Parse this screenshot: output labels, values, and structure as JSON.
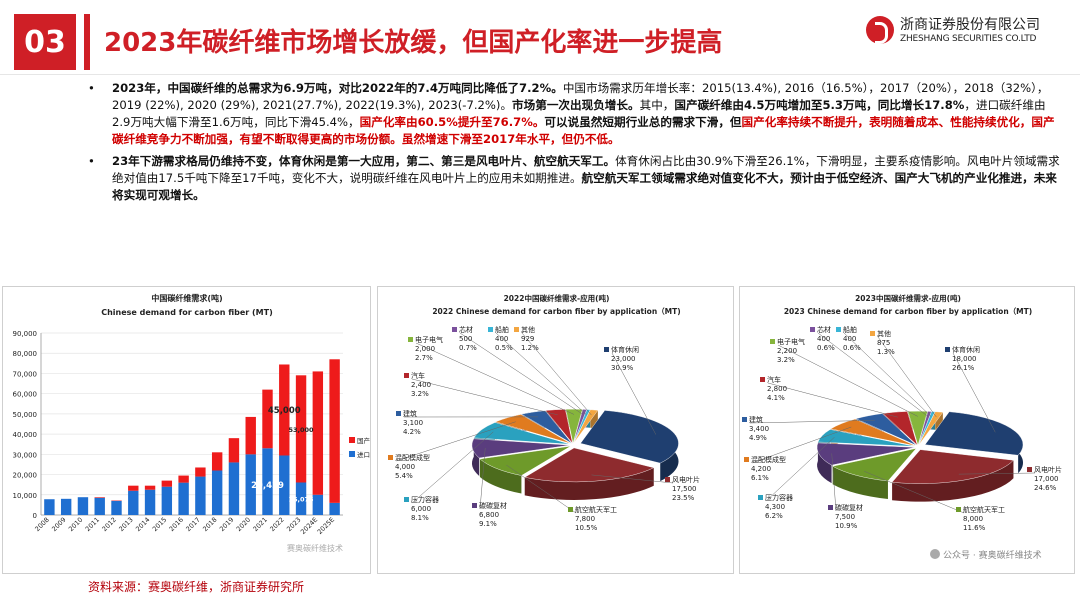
{
  "header": {
    "section_number": "03",
    "title": "2023年碳纤维市场增长放缓，但国产化率进一步提高"
  },
  "logo": {
    "cn": "浙商证券股份有限公司",
    "en": "ZHESHANG SECURITIES CO.LTD"
  },
  "bullets": [
    {
      "dot": "•",
      "segments": [
        {
          "t": "2023年，中国碳纤维的总需求为6.9万吨，对比2022年的7.4万吨同比降低了7.2%。",
          "s": "b"
        },
        {
          "t": "中国市场需求历年增长率：2015(13.4%), 2016（16.5%），2017（20%），2018（32%），2019 (22%), 2020 (29%), 2021(27.7%), 2022(19.3%), 2023(-7.2%)。",
          "s": ""
        },
        {
          "t": "市场第一次出现负增长。",
          "s": "b"
        },
        {
          "t": "其中，",
          "s": ""
        },
        {
          "t": "国产碳纤维由4.5万吨增加至5.3万吨，同比增长17.8%",
          "s": "b"
        },
        {
          "t": "，进口碳纤维由2.9万吨大幅下滑至1.6万吨，同比下滑45.4%，",
          "s": ""
        },
        {
          "t": "国产化率由60.5%提升至76.7%。",
          "s": "r"
        },
        {
          "t": "可以说虽然短期行业总的需求下滑，但",
          "s": "b"
        },
        {
          "t": "国产化率持续不断提升，表明随着成本、性能持续优化，国产碳纤维竞争力不断加强，有望不断取得更高的市场份额。虽然增速下滑至2017年水平，但仍不低。",
          "s": "r"
        }
      ]
    },
    {
      "dot": "•",
      "segments": [
        {
          "t": "23年下游需求格局仍维持不变，体育休闲是第一大应用，第二、第三是风电叶片、航空航天军工。",
          "s": "b"
        },
        {
          "t": "体育休闲占比由30.9%下滑至26.1%，下滑明显，主要系疫情影响。风电叶片领域需求绝对值由17.5千吨下降至17千吨，变化不大，说明碳纤维在风电叶片上的应用未如期推进。",
          "s": ""
        },
        {
          "t": "航空航天军工领域需求绝对值变化不大，预计由于低空经济、国产大飞机的产业化推进，未来将实现可观增长。",
          "s": "b"
        }
      ]
    }
  ],
  "bar_chart": {
    "type": "bar",
    "title_cn": "中国碳纤维需求(吨)",
    "title_en": "Chinese demand for carbon fiber (MT)",
    "categories": [
      "2008",
      "2009",
      "2010",
      "2011",
      "2012",
      "2013",
      "2014",
      "2015",
      "2016",
      "2017",
      "2018",
      "2019",
      "2020",
      "2021",
      "2022",
      "2023",
      "2024E",
      "2025E"
    ],
    "series": [
      {
        "name": "进口",
        "color": "#1f6fd1",
        "values": [
          7800,
          8000,
          8800,
          8500,
          7000,
          12000,
          12500,
          14000,
          16000,
          19000,
          22000,
          26000,
          30000,
          33000,
          29429,
          16075,
          10000,
          6000
        ]
      },
      {
        "name": "国产",
        "color": "#ee1b1b",
        "values": [
          0,
          0,
          0,
          300,
          200,
          2500,
          2000,
          3000,
          3500,
          4500,
          9000,
          12000,
          18500,
          29000,
          45000,
          53000,
          61000,
          71000
        ]
      }
    ],
    "ylim": [
      0,
      90000
    ],
    "yticks": [
      "0",
      "10,000",
      "20,000",
      "30,000",
      "40,000",
      "50,000",
      "60,000",
      "70,000",
      "80,000",
      "90,000"
    ],
    "legend": [
      "国产",
      "进口"
    ],
    "annotations": [
      "45,000",
      "29,429",
      "53,000",
      "16,075"
    ],
    "watermark": "赛奥碳纤维技术"
  },
  "pie_2022": {
    "type": "pie",
    "title_cn": "2022中国碳纤维需求-应用(吨)",
    "title_en": "2022 Chinese demand for carbon fiber by application（MT)",
    "slices": [
      {
        "name": "体育休闲",
        "value": "23,000",
        "pct": "30.9%",
        "v": 23000,
        "color": "#1f3f70"
      },
      {
        "name": "风电叶片",
        "value": "17,500",
        "pct": "23.5%",
        "v": 17500,
        "color": "#8e2b2e"
      },
      {
        "name": "航空航天军工",
        "value": "7,800",
        "pct": "10.5%",
        "v": 7800,
        "color": "#6e9a2a"
      },
      {
        "name": "碳碳复材",
        "value": "6,800",
        "pct": "9.1%",
        "v": 6800,
        "color": "#5a3d7e"
      },
      {
        "name": "压力容器",
        "value": "6,000",
        "pct": "8.1%",
        "v": 6000,
        "color": "#2aa1bf"
      },
      {
        "name": "混配模成型",
        "value": "4,000",
        "pct": "5.4%",
        "v": 4000,
        "color": "#e07b1f"
      },
      {
        "name": "建筑",
        "value": "3,100",
        "pct": "4.2%",
        "v": 3100,
        "color": "#2d5d9f"
      },
      {
        "name": "汽车",
        "value": "2,400",
        "pct": "3.2%",
        "v": 2400,
        "color": "#b3262b"
      },
      {
        "name": "电子电气",
        "value": "2,000",
        "pct": "2.7%",
        "v": 2000,
        "color": "#86b53c"
      },
      {
        "name": "芯材",
        "value": "500",
        "pct": "0.7%",
        "v": 500,
        "color": "#7b519d"
      },
      {
        "name": "船舶",
        "value": "400",
        "pct": "0.5%",
        "v": 400,
        "color": "#39b5d6"
      },
      {
        "name": "其他",
        "value": "929",
        "pct": "1.2%",
        "v": 929,
        "color": "#f3a641"
      }
    ]
  },
  "pie_2023": {
    "type": "pie",
    "title_cn": "2023中国碳纤维需求-应用(吨)",
    "title_en": "2023 Chinese demand for carbon fiber by application（MT)",
    "slices": [
      {
        "name": "体育休闲",
        "value": "18,000",
        "pct": "26.1%",
        "v": 18000,
        "color": "#1f3f70"
      },
      {
        "name": "风电叶片",
        "value": "17,000",
        "pct": "24.6%",
        "v": 17000,
        "color": "#8e2b2e"
      },
      {
        "name": "航空航天军工",
        "value": "8,000",
        "pct": "11.6%",
        "v": 8000,
        "color": "#6e9a2a"
      },
      {
        "name": "碳碳复材",
        "value": "7,500",
        "pct": "10.9%",
        "v": 7500,
        "color": "#5a3d7e"
      },
      {
        "name": "压力容器",
        "value": "4,300",
        "pct": "6.2%",
        "v": 4300,
        "color": "#2aa1bf"
      },
      {
        "name": "混配模成型",
        "value": "4,200",
        "pct": "6.1%",
        "v": 4200,
        "color": "#e07b1f"
      },
      {
        "name": "建筑",
        "value": "3,400",
        "pct": "4.9%",
        "v": 3400,
        "color": "#2d5d9f"
      },
      {
        "name": "汽车",
        "value": "2,800",
        "pct": "4.1%",
        "v": 2800,
        "color": "#b3262b"
      },
      {
        "name": "电子电气",
        "value": "2,200",
        "pct": "3.2%",
        "v": 2200,
        "color": "#86b53c"
      },
      {
        "name": "芯材",
        "value": "400",
        "pct": "0.6%",
        "v": 400,
        "color": "#7b519d"
      },
      {
        "name": "船舶",
        "value": "400",
        "pct": "0.6%",
        "v": 400,
        "color": "#39b5d6"
      },
      {
        "name": "其他",
        "value": "875",
        "pct": "1.3%",
        "v": 875,
        "color": "#f3a641"
      }
    ]
  },
  "source": "资料来源：赛奥碳纤维，浙商证券研究所",
  "watermark": "公众号 · 赛奥碳纤维技术"
}
